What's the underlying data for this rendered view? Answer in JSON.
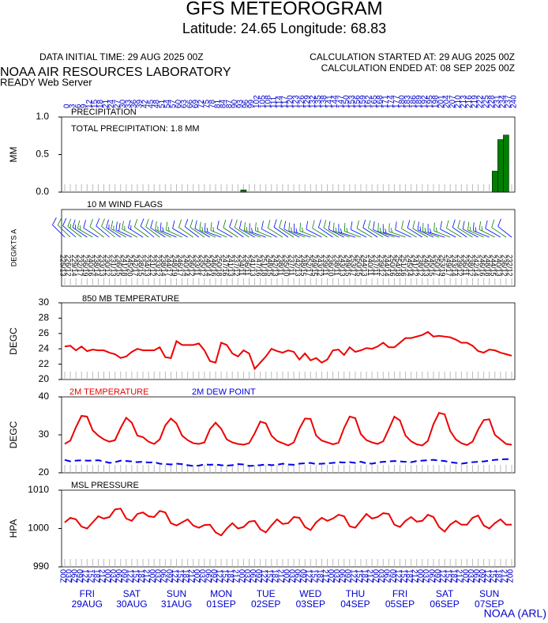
{
  "header": {
    "title": "GFS METEOROGRAM",
    "location": "Latitude: 24.65 Longitude:  68.83",
    "init_time": "DATA INITIAL TIME: 29 AUG 2025 00Z",
    "calc_started": "CALCULATION STARTED AT: 29 AUG 2025 00Z",
    "calc_ended": "CALCULATION ENDED AT: 08 SEP 2025 00Z",
    "lab": "NOAA AIR RESOURCES LABORATORY",
    "server": "READY Web Server",
    "credit": "NOAA (ARL)"
  },
  "time": {
    "hours": [
      0,
      3,
      6,
      9,
      12,
      15,
      18,
      21,
      24,
      27,
      30,
      33,
      36,
      39,
      42,
      45,
      48,
      51,
      54,
      57,
      60,
      63,
      66,
      69,
      72,
      75,
      78,
      81,
      84,
      87,
      90,
      93,
      96,
      99,
      102,
      105,
      108,
      111,
      114,
      117,
      120,
      123,
      126,
      129,
      132,
      135,
      138,
      141,
      144,
      147,
      150,
      153,
      156,
      159,
      162,
      165,
      168,
      171,
      174,
      177,
      180,
      183,
      186,
      189,
      192,
      195,
      198,
      201,
      204,
      207,
      210,
      213,
      216,
      219,
      222,
      225,
      228,
      231,
      234,
      237,
      240
    ],
    "labels": [
      "00Z",
      "03Z",
      "06Z",
      "09Z",
      "12Z",
      "15Z",
      "18Z",
      "21Z",
      "00Z",
      "03Z",
      "06Z",
      "09Z",
      "12Z",
      "15Z",
      "18Z",
      "21Z",
      "00Z",
      "03Z",
      "06Z",
      "09Z",
      "12Z",
      "15Z",
      "18Z",
      "21Z",
      "00Z",
      "03Z",
      "06Z",
      "09Z",
      "12Z",
      "15Z",
      "18Z",
      "21Z",
      "00Z",
      "03Z",
      "06Z",
      "09Z",
      "12Z",
      "15Z",
      "18Z",
      "21Z",
      "00Z",
      "03Z",
      "06Z",
      "09Z",
      "12Z",
      "15Z",
      "18Z",
      "21Z",
      "00Z",
      "03Z",
      "06Z",
      "09Z",
      "12Z",
      "15Z",
      "18Z",
      "21Z",
      "00Z",
      "03Z",
      "06Z",
      "09Z",
      "12Z",
      "15Z",
      "18Z",
      "21Z",
      "00Z",
      "03Z",
      "06Z",
      "09Z",
      "12Z",
      "15Z",
      "18Z",
      "21Z",
      "00Z",
      "03Z",
      "06Z",
      "09Z",
      "12Z",
      "15Z",
      "18Z",
      "21Z",
      "00Z"
    ],
    "days": [
      {
        "day": "FRI",
        "date": "29AUG"
      },
      {
        "day": "SAT",
        "date": "30AUG"
      },
      {
        "day": "SUN",
        "date": "31AUG"
      },
      {
        "day": "MON",
        "date": "01SEP"
      },
      {
        "day": "TUE",
        "date": "02SEP"
      },
      {
        "day": "WED",
        "date": "03SEP"
      },
      {
        "day": "THU",
        "date": "04SEP"
      },
      {
        "day": "FRI",
        "date": "05SEP"
      },
      {
        "day": "SAT",
        "date": "06SEP"
      },
      {
        "day": "SUN",
        "date": "07SEP"
      }
    ]
  },
  "chart_data": [
    {
      "type": "bar",
      "title": "PRECIPITATION",
      "annotation": "TOTAL PRECIPITATION:   1.8 MM",
      "ylabel": "MM",
      "x": [
        96,
        231,
        234,
        237
      ],
      "values": [
        0.03,
        0.28,
        0.7,
        0.76
      ],
      "color": "#008000",
      "ylim": [
        0,
        1
      ],
      "yticks": [
        {
          "value": 0,
          "label": "0.0"
        },
        0.5,
        {
          "value": 1,
          "label": "1.0"
        }
      ]
    },
    {
      "type": "wind",
      "title": "10 M  WIND FLAGS",
      "ylabel": "DEG/KTS  A",
      "colors": [
        "#0000ff",
        "#008000"
      ],
      "dir": [
        225,
        226,
        229,
        232,
        236,
        240,
        238,
        233,
        230,
        231,
        236,
        241,
        245,
        242,
        238,
        234,
        231,
        233,
        238,
        244,
        248,
        246,
        240,
        236,
        233,
        235,
        240,
        246,
        250,
        247,
        241,
        237,
        234,
        236,
        241,
        247,
        251,
        248,
        242,
        238,
        235,
        237,
        242,
        248,
        252,
        249,
        243,
        239,
        236,
        238,
        243,
        249,
        253,
        250,
        244,
        240,
        237,
        239,
        244,
        250,
        254,
        251,
        245,
        241,
        238,
        240,
        245,
        250,
        253,
        249,
        243,
        239,
        236,
        238,
        242,
        246,
        248,
        244,
        240,
        236,
        232
      ],
      "speed": [
        13,
        12,
        14,
        17,
        19,
        16,
        14,
        13,
        12,
        13,
        15,
        18,
        20,
        17,
        15,
        13,
        12,
        12,
        14,
        17,
        19,
        17,
        14,
        12,
        11,
        12,
        14,
        16,
        18,
        16,
        13,
        12,
        11,
        11,
        13,
        16,
        18,
        15,
        13,
        11,
        10,
        11,
        13,
        15,
        17,
        15,
        12,
        11,
        10,
        11,
        13,
        15,
        17,
        15,
        13,
        11,
        11,
        12,
        14,
        16,
        18,
        16,
        14,
        12,
        12,
        13,
        15,
        17,
        19,
        17,
        14,
        12,
        11,
        12,
        14,
        16,
        18,
        15,
        13,
        12,
        12
      ],
      "value_labels": [
        "225/13",
        "226/12",
        "229/14",
        "232/17",
        "236/19",
        "240/16",
        "238/14",
        "233/13",
        "230/12",
        "231/13",
        "236/15",
        "241/18",
        "245/20",
        "242/17",
        "238/15",
        "234/13",
        "231/12",
        "233/12",
        "238/14",
        "244/17",
        "248/19",
        "246/17",
        "240/14",
        "236/12",
        "233/11",
        "235/12",
        "240/14",
        "246/16",
        "250/18",
        "247/16",
        "241/13",
        "237/12",
        "234/11",
        "236/11",
        "241/13",
        "247/16",
        "251/18",
        "248/15",
        "242/13",
        "238/11",
        "235/10",
        "237/11",
        "242/13",
        "248/15",
        "252/17",
        "249/15",
        "243/12",
        "239/11",
        "236/10",
        "238/11",
        "243/13",
        "249/15",
        "253/17",
        "250/15",
        "244/13",
        "240/11",
        "237/11",
        "239/12",
        "244/14",
        "250/16",
        "254/18",
        "251/16",
        "245/14",
        "241/12",
        "238/12",
        "240/13",
        "245/15",
        "250/17",
        "253/19",
        "249/17",
        "243/14",
        "239/12",
        "236/11",
        "238/12",
        "242/14",
        "246/16",
        "248/18",
        "244/15",
        "240/13",
        "236/12",
        "232/12"
      ]
    },
    {
      "type": "line",
      "title": "850 MB  TEMPERATURE",
      "ylabel": "DEGC",
      "color": "#ee0000",
      "ylim": [
        20,
        30
      ],
      "yticks": [
        20,
        22,
        24,
        26,
        28,
        30
      ],
      "values": [
        24.3,
        24.4,
        23.8,
        24.3,
        23.7,
        23.9,
        23.8,
        23.8,
        23.5,
        23.3,
        22.8,
        23.0,
        23.6,
        24.0,
        23.8,
        23.8,
        23.8,
        24.2,
        22.9,
        22.8,
        25.0,
        24.5,
        24.5,
        24.5,
        24.7,
        23.8,
        22.4,
        22.2,
        24.8,
        24.5,
        23.4,
        23.0,
        23.8,
        23.4,
        21.4,
        22.2,
        23.0,
        24.0,
        23.7,
        23.5,
        23.8,
        23.6,
        22.6,
        23.4,
        22.5,
        22.8,
        22.2,
        22.6,
        23.8,
        23.9,
        23.2,
        24.2,
        23.6,
        23.8,
        24.1,
        24.0,
        24.3,
        24.8,
        24.2,
        24.2,
        24.8,
        25.4,
        25.4,
        25.6,
        25.8,
        26.2,
        25.6,
        25.7,
        25.6,
        25.5,
        25.2,
        24.8,
        24.8,
        24.4,
        23.7,
        23.5,
        23.9,
        23.8,
        23.5,
        23.3,
        23.1
      ]
    },
    {
      "type": "line",
      "ylabel": "DEGC",
      "ylim": [
        20,
        40
      ],
      "yticks": [
        20,
        30,
        40
      ],
      "series": [
        {
          "name": "2M TEMPERATURE",
          "color": "#ee0000",
          "values": [
            27.6,
            28.5,
            32.0,
            35.0,
            34.8,
            31.2,
            29.8,
            28.8,
            28.2,
            28.6,
            31.8,
            34.5,
            33.2,
            29.8,
            29.4,
            28.2,
            27.6,
            28.8,
            32.5,
            34.3,
            33.0,
            29.8,
            28.6,
            27.8,
            27.6,
            28.0,
            31.5,
            33.2,
            31.6,
            28.8,
            28.0,
            27.6,
            27.4,
            27.8,
            30.4,
            33.5,
            33.0,
            29.8,
            28.4,
            27.8,
            27.2,
            28.0,
            31.6,
            34.3,
            34.2,
            29.8,
            28.5,
            28.0,
            27.5,
            27.9,
            31.8,
            34.8,
            34.4,
            30.2,
            28.6,
            28.0,
            27.6,
            28.3,
            31.5,
            34.8,
            33.8,
            29.8,
            28.3,
            27.5,
            27.2,
            28.4,
            32.8,
            35.8,
            35.4,
            31.0,
            28.8,
            27.8,
            27.3,
            28.2,
            31.4,
            33.9,
            34.1,
            30.0,
            28.8,
            27.6,
            27.4
          ]
        },
        {
          "name": "2M   DEW POINT",
          "color": "#0000ee",
          "dashed": true,
          "values": [
            23.4,
            23.0,
            23.2,
            23.3,
            23.2,
            23.2,
            23.3,
            23.0,
            22.6,
            22.8,
            23.2,
            23.1,
            23.0,
            22.8,
            22.9,
            22.7,
            22.8,
            22.4,
            22.3,
            22.2,
            22.4,
            22.3,
            22.0,
            21.8,
            21.9,
            22.2,
            22.1,
            22.2,
            22.0,
            21.9,
            22.0,
            22.3,
            22.2,
            21.8,
            21.9,
            22.0,
            22.2,
            22.0,
            22.1,
            22.4,
            22.2,
            22.1,
            22.4,
            22.5,
            22.6,
            22.3,
            22.4,
            22.5,
            22.6,
            22.8,
            22.7,
            22.8,
            22.6,
            22.9,
            22.5,
            22.4,
            22.7,
            22.9,
            23.0,
            23.1,
            23.0,
            22.9,
            22.8,
            23.1,
            23.2,
            23.3,
            23.4,
            23.2,
            23.1,
            22.8,
            22.6,
            22.4,
            22.6,
            22.8,
            22.9,
            23.0,
            23.2,
            23.4,
            23.5,
            23.6,
            23.6
          ]
        }
      ]
    },
    {
      "type": "line",
      "title": "MSL PRESSURE",
      "ylabel": "HPA",
      "color": "#ee0000",
      "ylim": [
        990,
        1010
      ],
      "yticks": [
        990,
        1000,
        1010
      ],
      "values": [
        1001.6,
        1002.8,
        1002.4,
        1000.5,
        1000.0,
        1001.6,
        1003.2,
        1002.6,
        1003.0,
        1005.0,
        1005.2,
        1002.6,
        1002.0,
        1003.8,
        1004.2,
        1003.2,
        1003.0,
        1004.6,
        1004.2,
        1001.4,
        1000.8,
        1001.6,
        1002.4,
        1000.8,
        1000.2,
        1000.9,
        1001.0,
        999.0,
        998.2,
        1000.0,
        1001.4,
        1000.0,
        1000.4,
        1001.8,
        1002.0,
        999.8,
        999.0,
        1000.8,
        1002.4,
        1001.2,
        1001.4,
        1003.0,
        1002.8,
        1000.4,
        999.6,
        1001.6,
        1002.8,
        1002.0,
        1002.6,
        1003.6,
        1003.2,
        1000.6,
        1000.2,
        1002.0,
        1003.8,
        1002.6,
        1003.0,
        1004.0,
        1003.8,
        1001.0,
        1000.4,
        1002.0,
        1003.0,
        1001.8,
        1002.0,
        1003.6,
        1003.0,
        1000.4,
        999.2,
        1001.0,
        1002.0,
        1001.0,
        1001.0,
        1002.8,
        1003.4,
        1000.8,
        1000.0,
        1001.4,
        1002.4,
        1001.0,
        1001.0
      ]
    }
  ]
}
